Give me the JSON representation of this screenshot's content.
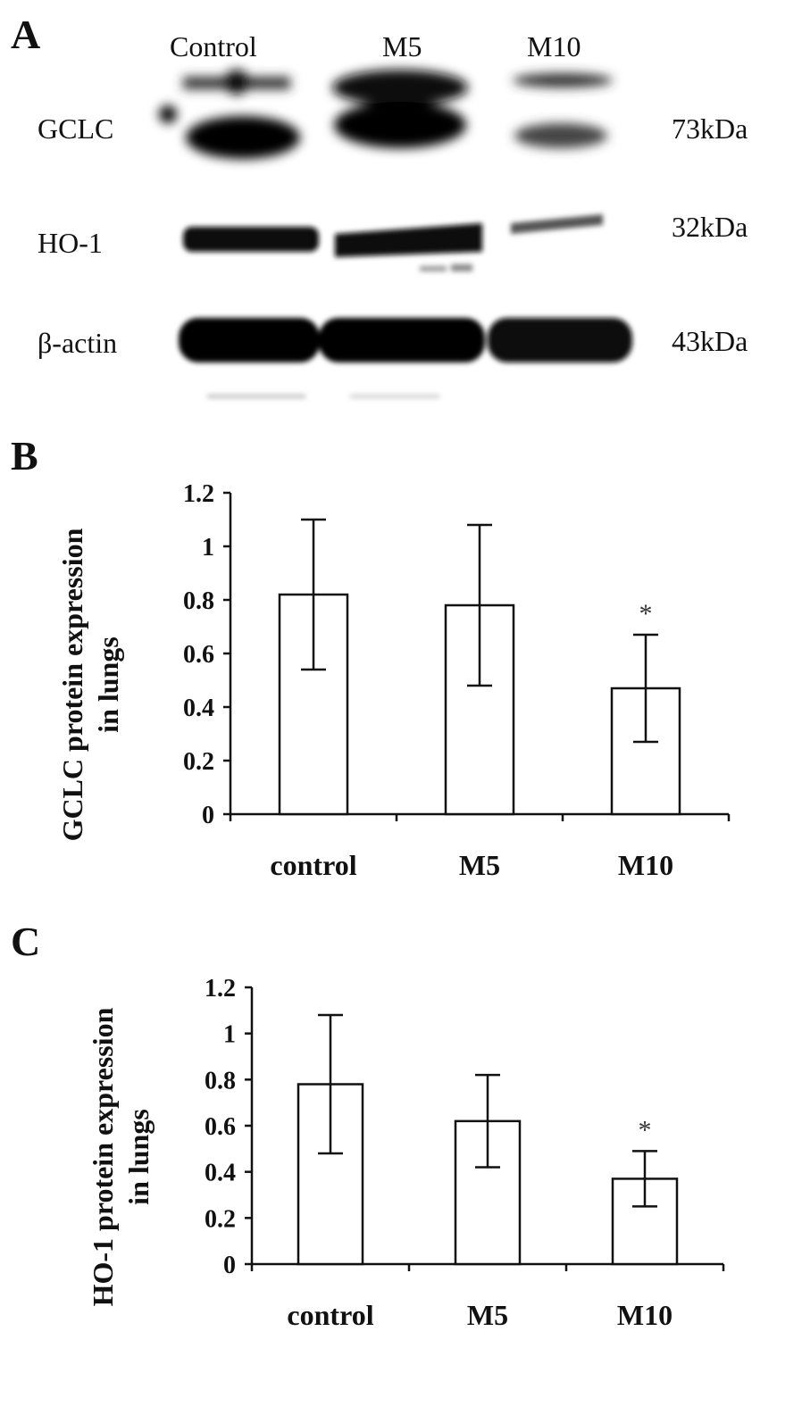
{
  "panel_a": {
    "letter": "A",
    "lanes": [
      "Control",
      "M5",
      "M10"
    ],
    "rows": [
      {
        "name": "GCLC",
        "kda": "73kDa"
      },
      {
        "name": "HO-1",
        "kda": "32kDa"
      },
      {
        "name": "β-actin",
        "kda": "43kDa"
      }
    ]
  },
  "chart_data": [
    {
      "type": "bar",
      "letter": "B",
      "categories": [
        "control",
        "M5",
        "M10"
      ],
      "values": [
        0.82,
        0.78,
        0.47
      ],
      "errors": [
        0.28,
        0.3,
        0.2
      ],
      "significance": [
        "",
        "",
        "*"
      ],
      "ylabel_line1": "GCLC protein expression",
      "ylabel_line2": "in lungs",
      "ylim": [
        0,
        1.2
      ],
      "yticks": [
        "0",
        "0.2",
        "0.4",
        "0.6",
        "0.8",
        "1",
        "1.2"
      ]
    },
    {
      "type": "bar",
      "letter": "C",
      "categories": [
        "control",
        "M5",
        "M10"
      ],
      "values": [
        0.78,
        0.62,
        0.37
      ],
      "errors": [
        0.3,
        0.2,
        0.12
      ],
      "significance": [
        "",
        "",
        "*"
      ],
      "ylabel_line1": "HO-1 protein expression",
      "ylabel_line2": "in lungs",
      "ylim": [
        0,
        1.2
      ],
      "yticks": [
        "0",
        "0.2",
        "0.4",
        "0.6",
        "0.8",
        "1",
        "1.2"
      ]
    }
  ]
}
